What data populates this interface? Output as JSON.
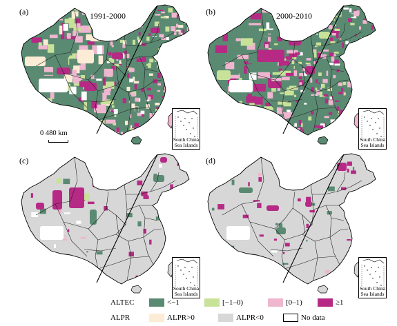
{
  "panels": [
    {
      "id": "a",
      "letter": "(a)",
      "period": "1991-2000",
      "type": "ALTEC",
      "inset_label": "South China Sea Islands"
    },
    {
      "id": "b",
      "letter": "(b)",
      "period": "2000-2010",
      "type": "ALTEC",
      "inset_label": "South China Sea Islands"
    },
    {
      "id": "c",
      "letter": "(c)",
      "period": "",
      "type": "ALPR",
      "inset_label": "South China Sea Islands"
    },
    {
      "id": "d",
      "letter": "(d)",
      "period": "",
      "type": "ALPR",
      "inset_label": "South China Sea Islands"
    }
  ],
  "scale_bar": {
    "label": "0  480 km"
  },
  "legend": {
    "altec": {
      "title": "ALTEC",
      "items": [
        {
          "label": "<−1",
          "color": "#5b8a72"
        },
        {
          "label": "[−1–0)",
          "color": "#c8e29a"
        },
        {
          "label": "[0–1)",
          "color": "#efb6cf"
        },
        {
          "label": "≥1",
          "color": "#b62a85"
        }
      ]
    },
    "alpr": {
      "title": "ALPR",
      "items": [
        {
          "label": "ALPR>0",
          "color": "#fcecd5"
        },
        {
          "label": "ALPR<0",
          "color": "#d7d7d7"
        },
        {
          "label": "No data",
          "color": "#ffffff"
        }
      ]
    }
  },
  "colors": {
    "altec_neg": "#5b8a72",
    "altec_mid_neg": "#c8e29a",
    "altec_low_pos": "#efb6cf",
    "altec_high_pos": "#b62a85",
    "alpr_pos": "#fcecd5",
    "alpr_neg": "#d7d7d7",
    "outline": "#000000"
  }
}
